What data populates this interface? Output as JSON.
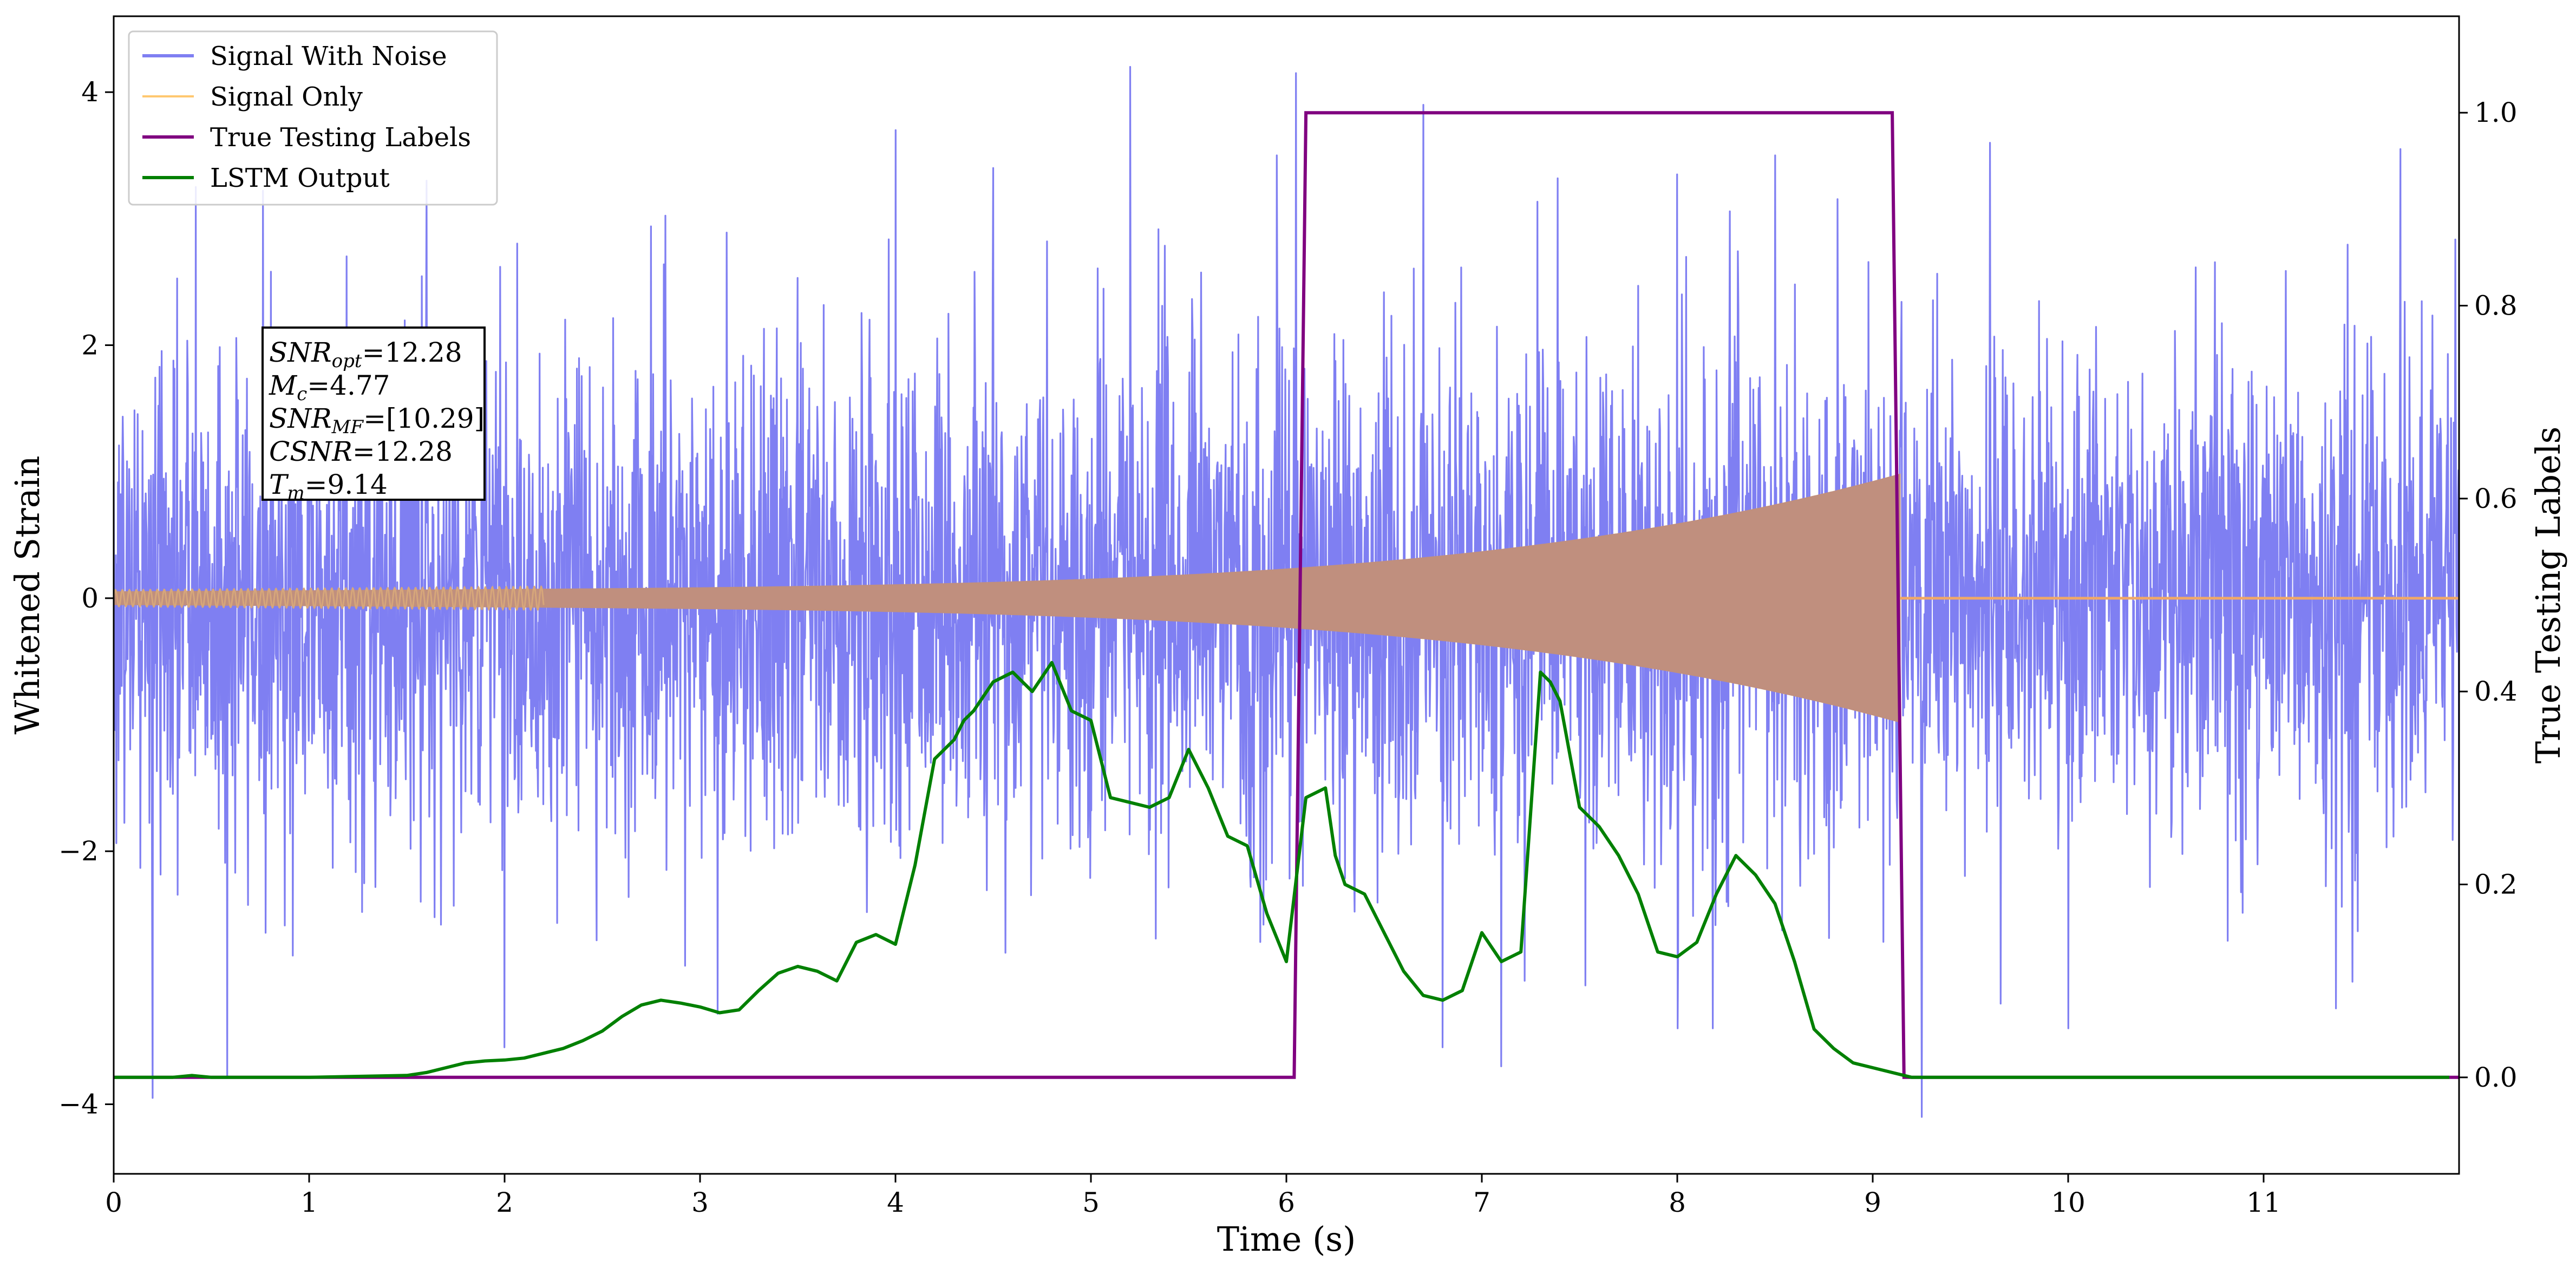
{
  "chart_data": {
    "type": "line",
    "xlabel": "Time (s)",
    "ylabel": "Whitened Strain",
    "y2label": "True Testing Labels",
    "xlim": [
      0,
      12
    ],
    "ylim": [
      -4.55,
      4.6
    ],
    "y2lim": [
      -0.1,
      1.1
    ],
    "xticks": [
      0,
      1,
      2,
      3,
      4,
      5,
      6,
      7,
      8,
      9,
      10,
      11
    ],
    "yticks": [
      -4,
      -2,
      0,
      2,
      4
    ],
    "yticklabels": [
      "−4",
      "−2",
      "0",
      "2",
      "4"
    ],
    "y2ticks": [
      0.0,
      0.2,
      0.4,
      0.6,
      0.8,
      1.0
    ],
    "y2ticklabels": [
      "0.0",
      "0.2",
      "0.4",
      "0.6",
      "0.8",
      "1.0"
    ],
    "grid": false,
    "legend_position": "top-left",
    "series": [
      {
        "name": "Signal With Noise",
        "color": "#7f7ff2",
        "axis": "left",
        "style": "dense-noise",
        "noise_std": 1.0,
        "spikes": [
          [
            0.2,
            -3.95
          ],
          [
            0.42,
            3.25
          ],
          [
            0.58,
            -3.78
          ],
          [
            1.6,
            3.3
          ],
          [
            2.0,
            -3.55
          ],
          [
            4.0,
            3.7
          ],
          [
            4.5,
            3.4
          ],
          [
            5.2,
            4.2
          ],
          [
            5.95,
            3.5
          ],
          [
            6.05,
            4.15
          ],
          [
            6.7,
            3.9
          ],
          [
            6.8,
            -3.55
          ],
          [
            7.1,
            -3.7
          ],
          [
            8.0,
            3.35
          ],
          [
            8.5,
            3.5
          ],
          [
            9.25,
            -4.1
          ],
          [
            9.6,
            3.6
          ],
          [
            10.0,
            -3.4
          ],
          [
            11.7,
            3.55
          ]
        ]
      },
      {
        "name": "Signal Only",
        "color": "#c08f7e",
        "legend_color": "#ffc870",
        "axis": "left",
        "style": "chirp",
        "start": 0.0,
        "end": 9.14,
        "amp_start": 0.05,
        "amp_end": 0.9
      },
      {
        "name": "True Testing Labels",
        "color": "#800080",
        "axis": "right",
        "x": [
          0.0,
          6.04,
          6.1,
          9.1,
          9.16,
          12.0
        ],
        "y": [
          0.0,
          0.0,
          1.0,
          1.0,
          0.0,
          0.0
        ]
      },
      {
        "name": "LSTM Output",
        "color": "#008000",
        "axis": "right",
        "x": [
          0.0,
          0.3,
          0.4,
          0.5,
          1.0,
          1.5,
          1.6,
          1.7,
          1.8,
          1.9,
          2.0,
          2.1,
          2.2,
          2.3,
          2.4,
          2.5,
          2.6,
          2.7,
          2.8,
          2.9,
          3.0,
          3.1,
          3.2,
          3.3,
          3.4,
          3.5,
          3.6,
          3.7,
          3.8,
          3.9,
          4.0,
          4.1,
          4.2,
          4.3,
          4.35,
          4.4,
          4.5,
          4.6,
          4.7,
          4.8,
          4.9,
          5.0,
          5.1,
          5.2,
          5.3,
          5.4,
          5.5,
          5.6,
          5.7,
          5.8,
          5.9,
          6.0,
          6.1,
          6.2,
          6.25,
          6.3,
          6.4,
          6.5,
          6.6,
          6.7,
          6.8,
          6.9,
          7.0,
          7.1,
          7.2,
          7.3,
          7.35,
          7.4,
          7.5,
          7.6,
          7.7,
          7.8,
          7.9,
          8.0,
          8.1,
          8.2,
          8.3,
          8.4,
          8.5,
          8.6,
          8.7,
          8.8,
          8.9,
          9.0,
          9.2,
          9.5,
          10.0,
          12.0
        ],
        "y": [
          0.0,
          0.0,
          0.002,
          0.0,
          0.0,
          0.002,
          0.005,
          0.01,
          0.015,
          0.017,
          0.018,
          0.02,
          0.025,
          0.03,
          0.038,
          0.048,
          0.063,
          0.075,
          0.08,
          0.077,
          0.073,
          0.067,
          0.07,
          0.09,
          0.108,
          0.115,
          0.11,
          0.1,
          0.14,
          0.148,
          0.138,
          0.22,
          0.33,
          0.35,
          0.37,
          0.38,
          0.41,
          0.42,
          0.4,
          0.43,
          0.38,
          0.37,
          0.29,
          0.285,
          0.28,
          0.29,
          0.34,
          0.3,
          0.25,
          0.24,
          0.17,
          0.12,
          0.29,
          0.3,
          0.23,
          0.2,
          0.19,
          0.15,
          0.11,
          0.085,
          0.08,
          0.09,
          0.15,
          0.12,
          0.13,
          0.42,
          0.41,
          0.39,
          0.28,
          0.26,
          0.23,
          0.19,
          0.13,
          0.125,
          0.14,
          0.19,
          0.23,
          0.21,
          0.18,
          0.12,
          0.05,
          0.03,
          0.015,
          0.01,
          0.0,
          0.0,
          0.0,
          0.0
        ]
      }
    ],
    "annotation": {
      "lines": [
        {
          "sym": "SNR",
          "sub": "opt",
          "value": "=12.28"
        },
        {
          "sym": "M",
          "sub": "c",
          "value": "=4.77"
        },
        {
          "sym": "SNR",
          "sub": "MF",
          "value": "=[10.29]"
        },
        {
          "sym": "CSNR",
          "sub": "",
          "value": "=12.28"
        },
        {
          "sym": "T",
          "sub": "m",
          "value": "=9.14"
        }
      ]
    }
  }
}
